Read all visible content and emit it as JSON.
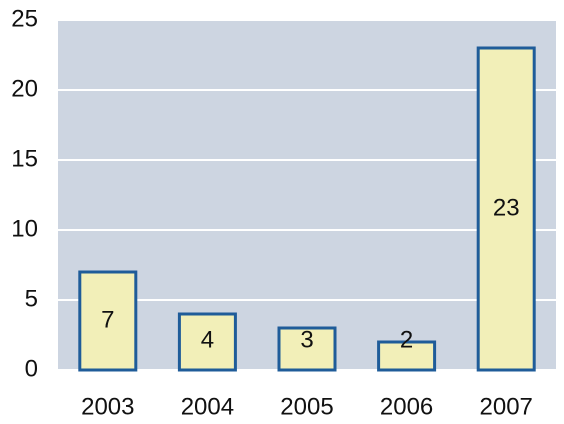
{
  "chart_data": {
    "type": "bar",
    "categories": [
      "2003",
      "2004",
      "2005",
      "2006",
      "2007"
    ],
    "values": [
      7,
      4,
      3,
      2,
      23
    ],
    "color": "#f2efb8",
    "edge_color": "#1f5c99",
    "plot_background": "#cdd5e1",
    "grid_color": "#ffffff",
    "ylim": [
      0,
      25
    ],
    "yticks": [
      0,
      5,
      10,
      15,
      20,
      25
    ],
    "grid": true
  }
}
